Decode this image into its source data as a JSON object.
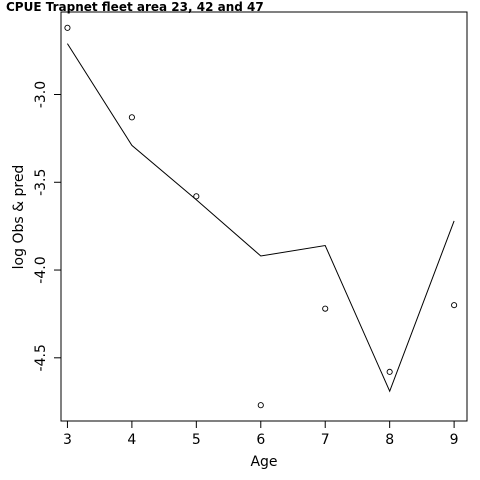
{
  "chart_data": {
    "type": "line",
    "title": "CPUE Trapnet fleet area 23, 42 and 47",
    "xlabel": "Age",
    "ylabel": "log Obs & pred",
    "xlim": [
      2.9,
      9.2
    ],
    "ylim": [
      -4.86,
      -2.53
    ],
    "x_ticks": [
      3,
      4,
      5,
      6,
      7,
      8,
      9
    ],
    "y_ticks": [
      -3.0,
      -3.5,
      -4.0,
      -4.5
    ],
    "x_tick_labels": [
      "3",
      "4",
      "5",
      "6",
      "7",
      "8",
      "9"
    ],
    "y_tick_labels": [
      "-3.0",
      "-3.5",
      "-4.0",
      "-4.5"
    ],
    "grid": false,
    "series": [
      {
        "type": "points",
        "marker": "open-circle",
        "x": [
          3,
          4,
          5,
          6,
          7,
          8,
          9
        ],
        "values": [
          -2.62,
          -3.13,
          -3.58,
          -4.77,
          -4.22,
          -4.58,
          -4.2
        ]
      },
      {
        "type": "line",
        "x": [
          3,
          4,
          5,
          6,
          7,
          8,
          9
        ],
        "values": [
          -2.71,
          -3.29,
          -3.6,
          -3.92,
          -3.86,
          -4.69,
          -3.72
        ]
      }
    ]
  }
}
